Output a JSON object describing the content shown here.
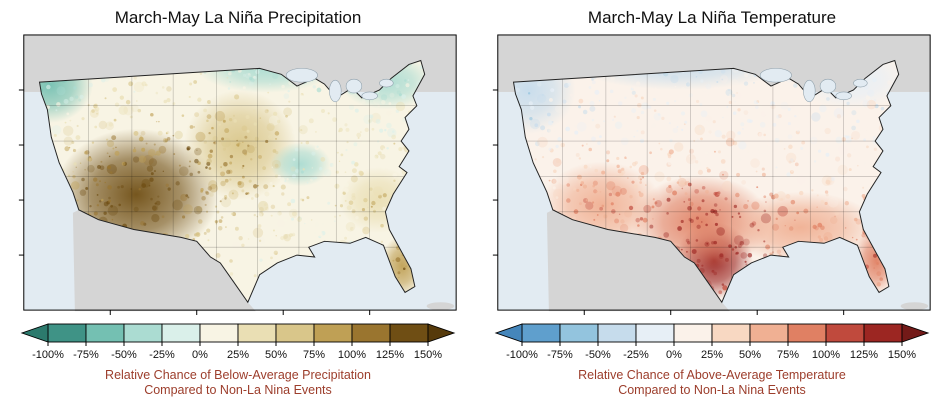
{
  "figure": {
    "background": "#ffffff",
    "ocean_color": "#e2ebf2",
    "neighbor_land_color": "#d5d5d5",
    "caption_color": "#9c3d2b"
  },
  "panels": [
    {
      "id": "precipitation",
      "title": "March-May La Niña Precipitation",
      "caption_line1": "Relative Chance of Below-Average Precipitation",
      "caption_line2": "Compared to Non-La Nina Events",
      "colorbar": {
        "tick_labels": [
          "-100%",
          "-75%",
          "-50%",
          "-25%",
          "0%",
          "25%",
          "50%",
          "75%",
          "100%",
          "125%",
          "150%"
        ],
        "segment_colors": [
          "#3f9386",
          "#74c0b2",
          "#abdcd2",
          "#daf0ea",
          "#f8f4e4",
          "#eadfb4",
          "#d9c68a",
          "#bfa055",
          "#9a752f",
          "#6f4e14"
        ],
        "arrow_left_color": "#2c7a6d",
        "arrow_right_color": "#563a0b"
      }
    },
    {
      "id": "temperature",
      "title": "March-May La Niña Temperature",
      "caption_line1": "Relative Chance of Above-Average Temperature",
      "caption_line2": "Compared to Non-La Nina Events",
      "colorbar": {
        "tick_labels": [
          "-100%",
          "-75%",
          "-50%",
          "-25%",
          "0%",
          "25%",
          "50%",
          "75%",
          "100%",
          "125%",
          "150%"
        ],
        "segment_colors": [
          "#5f9fcd",
          "#93c4de",
          "#c6dcec",
          "#e7eff6",
          "#fbf2ea",
          "#f8d8c2",
          "#f0b093",
          "#e08063",
          "#c04a3d",
          "#9c2622"
        ],
        "arrow_left_color": "#4586bb",
        "arrow_right_color": "#731a18"
      }
    }
  ],
  "chart_data": [
    {
      "type": "heatmap",
      "title": "March-May La Niña Precipitation",
      "variable": "Relative chance of below-average precipitation compared to non-La Nina events",
      "units": "%",
      "scale_ticks_percent": [
        -100,
        -75,
        -50,
        -25,
        0,
        25,
        50,
        75,
        100,
        125,
        150
      ],
      "bin_width_percent": 25,
      "base_value_percent": 15,
      "anomaly_centers": [
        {
          "region": "Desert Southwest (AZ/NM/UT/CO)",
          "value_percent": 135,
          "cx": 0.26,
          "cy": 0.58,
          "rx": 0.19,
          "ry": 0.24
        },
        {
          "region": "Central / Southern High Plains",
          "value_percent": 60,
          "cx": 0.5,
          "cy": 0.4,
          "rx": 0.13,
          "ry": 0.2
        },
        {
          "region": "Florida Peninsula",
          "value_percent": 90,
          "cx": 0.875,
          "cy": 0.84,
          "rx": 0.05,
          "ry": 0.11
        },
        {
          "region": "Southeast coastal plain",
          "value_percent": 45,
          "cx": 0.82,
          "cy": 0.6,
          "rx": 0.09,
          "ry": 0.12
        },
        {
          "region": "Pacific Northwest",
          "value_percent": -55,
          "cx": 0.06,
          "cy": 0.18,
          "rx": 0.1,
          "ry": 0.14
        },
        {
          "region": "Northern Plains / Upper Midwest",
          "value_percent": -45,
          "cx": 0.56,
          "cy": 0.12,
          "rx": 0.16,
          "ry": 0.09
        },
        {
          "region": "Great Lakes / New England",
          "value_percent": -35,
          "cx": 0.84,
          "cy": 0.17,
          "rx": 0.11,
          "ry": 0.1
        },
        {
          "region": "Mid-Mississippi Valley",
          "value_percent": -30,
          "cx": 0.64,
          "cy": 0.47,
          "rx": 0.07,
          "ry": 0.08
        }
      ]
    },
    {
      "type": "heatmap",
      "title": "March-May La Niña Temperature",
      "variable": "Relative chance of above-average temperature compared to non-La Nina events",
      "units": "%",
      "scale_ticks_percent": [
        -100,
        -75,
        -50,
        -25,
        0,
        25,
        50,
        75,
        100,
        125,
        150
      ],
      "bin_width_percent": 25,
      "base_value_percent": 10,
      "anomaly_centers": [
        {
          "region": "South Texas / Rio Grande Valley",
          "value_percent": 140,
          "cx": 0.5,
          "cy": 0.82,
          "rx": 0.09,
          "ry": 0.14
        },
        {
          "region": "Texas / Southern Plains",
          "value_percent": 95,
          "cx": 0.47,
          "cy": 0.68,
          "rx": 0.16,
          "ry": 0.17
        },
        {
          "region": "Gulf Coast & Southeast",
          "value_percent": 70,
          "cx": 0.7,
          "cy": 0.7,
          "rx": 0.18,
          "ry": 0.13
        },
        {
          "region": "Desert Southwest",
          "value_percent": 65,
          "cx": 0.24,
          "cy": 0.62,
          "rx": 0.14,
          "ry": 0.16
        },
        {
          "region": "Florida Peninsula",
          "value_percent": 90,
          "cx": 0.875,
          "cy": 0.82,
          "rx": 0.05,
          "ry": 0.12
        },
        {
          "region": "Pacific Northwest",
          "value_percent": -40,
          "cx": 0.07,
          "cy": 0.2,
          "rx": 0.11,
          "ry": 0.16
        },
        {
          "region": "Northern tier (MT-ND-MN)",
          "value_percent": -35,
          "cx": 0.42,
          "cy": 0.1,
          "rx": 0.25,
          "ry": 0.1
        },
        {
          "region": "Great Lakes / Northeast",
          "value_percent": -25,
          "cx": 0.82,
          "cy": 0.16,
          "rx": 0.13,
          "ry": 0.11
        }
      ]
    }
  ]
}
